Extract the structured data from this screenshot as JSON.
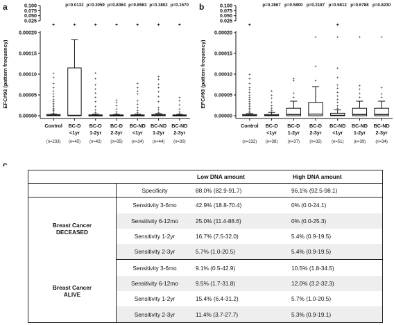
{
  "panel_letters": {
    "a": "a",
    "b": "b",
    "c": "c"
  },
  "chart_data": [
    {
      "type": "box",
      "panel": "a",
      "ylabel": "EFC#93 (pattern frequency)",
      "y_lower_ticks": [
        "0.00000",
        "0.00005",
        "0.00010",
        "0.00015",
        "0.00020"
      ],
      "y_upper_ticks": [
        "0.100",
        "0.075",
        "0.050",
        "0.025"
      ],
      "ylim": [
        0,
        0.0002
      ],
      "categories": [
        {
          "line1": "Control",
          "line2": "",
          "n": "(n=233)"
        },
        {
          "line1": "BC-D",
          "line2": "<1yr",
          "n": "(n=45)"
        },
        {
          "line1": "BC-D",
          "line2": "1-2yr",
          "n": "(n=42)"
        },
        {
          "line1": "BC-D",
          "line2": "2-3yr",
          "n": "(n=35)"
        },
        {
          "line1": "BC-ND",
          "line2": "<1yr",
          "n": "(n=34)"
        },
        {
          "line1": "BC-ND",
          "line2": "1-2yr",
          "n": "(n=44)"
        },
        {
          "line1": "BC-ND",
          "line2": "2-3yr",
          "n": "(n=30)"
        }
      ],
      "pvalues": [
        "",
        "p=0.0132",
        "p=0.3059",
        "p=0.8364",
        "p=0.8583",
        "p=0.3802",
        "p=0.1570"
      ],
      "boxes": [
        {
          "min": 0,
          "q1": 0,
          "median": 1e-06,
          "q3": 3e-06,
          "max": 4e-06
        },
        {
          "min": 0,
          "q1": 0,
          "median": 1e-06,
          "q3": 0.000115,
          "max": 0.000183
        },
        {
          "min": 0,
          "q1": 0,
          "median": 1e-06,
          "q3": 2e-06,
          "max": 4e-06
        },
        {
          "min": 0,
          "q1": 0,
          "median": 1e-06,
          "q3": 2e-06,
          "max": 3e-06
        },
        {
          "min": 0,
          "q1": 0,
          "median": 1e-06,
          "q3": 2e-06,
          "max": 4e-06
        },
        {
          "min": 0,
          "q1": 0,
          "median": 1e-06,
          "q3": 3e-06,
          "max": 5e-06
        },
        {
          "min": 0,
          "q1": 0,
          "median": 1e-06,
          "q3": 2e-06,
          "max": 3e-06
        }
      ],
      "outliers": [
        {
          "cat": 0,
          "values": [
            6e-06,
            9e-06,
            1.2e-05,
            1.5e-05,
            1.8e-05,
            2.2e-05,
            2.6e-05,
            3e-05,
            3.5e-05,
            4e-05,
            4.6e-05,
            5.2e-05,
            6e-05,
            6.8e-05,
            7.8e-05,
            9.2e-05,
            0.000102
          ]
        },
        {
          "cat": 2,
          "values": [
            8e-06,
            1.4e-05,
            2.2e-05,
            3.4e-05,
            4.5e-05,
            5.5e-05,
            6.5e-05,
            7.5e-05,
            9e-05,
            0.000103
          ]
        },
        {
          "cat": 3,
          "values": [
            6e-06,
            1e-05,
            1.6e-05,
            2.4e-05,
            3.2e-05,
            3.8e-05
          ]
        },
        {
          "cat": 4,
          "values": [
            8e-06,
            1.2e-05,
            2e-05,
            2.8e-05,
            3.6e-05,
            5.2e-05,
            6e-05,
            6.8e-05,
            7.8e-05
          ]
        },
        {
          "cat": 5,
          "values": [
            8e-06,
            1.4e-05,
            2e-05,
            3.4e-05,
            4.6e-05,
            5.8e-05,
            6.8e-05,
            7.6e-05,
            8.8e-05,
            9.5e-05
          ]
        },
        {
          "cat": 6,
          "values": [
            6e-06,
            1e-05,
            1.6e-05,
            2.6e-05,
            3.6e-05,
            4.4e-05
          ]
        }
      ],
      "upper_outliers": [
        0,
        1,
        2,
        3,
        4,
        5,
        6
      ],
      "grid": false
    },
    {
      "type": "box",
      "panel": "b",
      "ylabel": "EFC#93 (pattern frequency)",
      "y_lower_ticks": [
        "0.00000",
        "0.00005",
        "0.00010",
        "0.00015",
        "0.00020"
      ],
      "y_upper_ticks": [
        "0.100",
        "0.075",
        "0.050",
        "0.025"
      ],
      "ylim": [
        0,
        0.0002
      ],
      "categories": [
        {
          "line1": "Control",
          "line2": "",
          "n": "(n=232)"
        },
        {
          "line1": "BC-D",
          "line2": "<1yr",
          "n": "(n=38)"
        },
        {
          "line1": "BC-D",
          "line2": "1-2yr",
          "n": "(n=37)"
        },
        {
          "line1": "BC-D",
          "line2": "2-3yr",
          "n": "(n=32)"
        },
        {
          "line1": "BC-ND",
          "line2": "<1yr",
          "n": "(n=51)"
        },
        {
          "line1": "BC-ND",
          "line2": "1-2yr",
          "n": "(n=39)"
        },
        {
          "line1": "BC-ND",
          "line2": "2-3yr",
          "n": "(n=34)"
        }
      ],
      "pvalues": [
        "",
        "p=0.2867",
        "p=0.5800",
        "p=0.2187",
        "p=0.5812",
        "p=0.6788",
        "p=0.8230"
      ],
      "boxes": [
        {
          "min": 0,
          "q1": 0,
          "median": 1e-06,
          "q3": 3e-06,
          "max": 5e-06
        },
        {
          "min": 0,
          "q1": 0,
          "median": 1e-06,
          "q3": 3e-06,
          "max": 8e-06
        },
        {
          "min": 0,
          "q1": 0,
          "median": 3e-06,
          "q3": 1.8e-05,
          "max": 3.5e-05
        },
        {
          "min": 0,
          "q1": 0,
          "median": 4e-06,
          "q3": 3.2e-05,
          "max": 7e-05
        },
        {
          "min": 0,
          "q1": 0,
          "median": 1e-06,
          "q3": 6e-06,
          "max": 1.4e-05
        },
        {
          "min": 0,
          "q1": 0,
          "median": 3e-06,
          "q3": 1.8e-05,
          "max": 3.5e-05
        },
        {
          "min": 0,
          "q1": 0,
          "median": 3e-06,
          "q3": 1.8e-05,
          "max": 3.5e-05
        }
      ],
      "outliers": [
        {
          "cat": 0,
          "values": [
            8e-06,
            1.1e-05,
            1.4e-05,
            1.8e-05,
            2.2e-05,
            2.6e-05,
            3e-05,
            3.5e-05,
            4e-05,
            4.5e-05,
            5e-05,
            5.6e-05,
            6.2e-05,
            6.8e-05,
            7.8e-05,
            9e-05,
            0.0001
          ]
        },
        {
          "cat": 1,
          "values": [
            1.2e-05,
            1.8e-05,
            2.4e-05,
            3.2e-05,
            4.2e-05,
            5e-05,
            6e-05
          ]
        },
        {
          "cat": 2,
          "values": [
            4.5e-05,
            5.5e-05,
            8.5e-05,
            9e-05
          ]
        },
        {
          "cat": 3,
          "values": [
            8.5e-05,
            0.00012,
            0.00019
          ]
        },
        {
          "cat": 4,
          "values": [
            1.8e-05,
            2.4e-05,
            3.2e-05,
            4e-05,
            4.8e-05,
            5.6e-05,
            6.6e-05,
            7.4e-05,
            9.2e-05,
            0.000115,
            0.00019
          ]
        },
        {
          "cat": 5,
          "values": [
            4.5e-05,
            5.4e-05,
            6.4e-05,
            7.2e-05,
            0.00019
          ]
        },
        {
          "cat": 6,
          "values": [
            4.5e-05,
            5.2e-05,
            6.8e-05,
            0.00019
          ]
        }
      ],
      "upper_outliers": [
        0,
        4
      ],
      "grid": false
    }
  ],
  "table": {
    "headers": {
      "low": "Low DNA amount",
      "high": "High DNA amount"
    },
    "specificity": {
      "metric": "Specificity",
      "low": "88.0% (82.9-91.7)",
      "high": "96.1% (92.5-98.1)"
    },
    "groups": [
      {
        "title1": "Breast Cancer",
        "title2": "DECEASED",
        "rows": [
          {
            "metric": "Sensitivity 3-6mo",
            "low": "42.9% (18.8-70.4)",
            "high": "0% (0.0-24.1)"
          },
          {
            "metric": "Sensitivity 6-12mo",
            "low": "25.0% (11.4-88.6)",
            "high": "0% (0.0-25.3)"
          },
          {
            "metric": "Sensitivity 1-2yr",
            "low": "16.7% (7.5-32.0)",
            "high": "5.4% (0.9-19.5)"
          },
          {
            "metric": "Sensitivity 2-3yr",
            "low": "5.7% (1.0-20.5)",
            "high": "5.4% (0.9-19.5)"
          }
        ]
      },
      {
        "title1": "Breast Cancer",
        "title2": "ALIVE",
        "rows": [
          {
            "metric": "Sensitivity 3-6mo",
            "low": "9.1% (0.5-42.9)",
            "high": "10.5% (1.8-34.5)"
          },
          {
            "metric": "Sensitivity 6-12mo",
            "low": "9.5% (1.7-31.8)",
            "high": "12.0% (3.2-32.3)"
          },
          {
            "metric": "Sensitivity 1-2yr",
            "low": "15.4% (6.4-31.2)",
            "high": "5.7% (1.0-20.5)"
          },
          {
            "metric": "Sensitivity 2-3yr",
            "low": "11.4% (3.7-27.7)",
            "high": "5.3% (0.9-19.1)"
          }
        ]
      }
    ]
  }
}
